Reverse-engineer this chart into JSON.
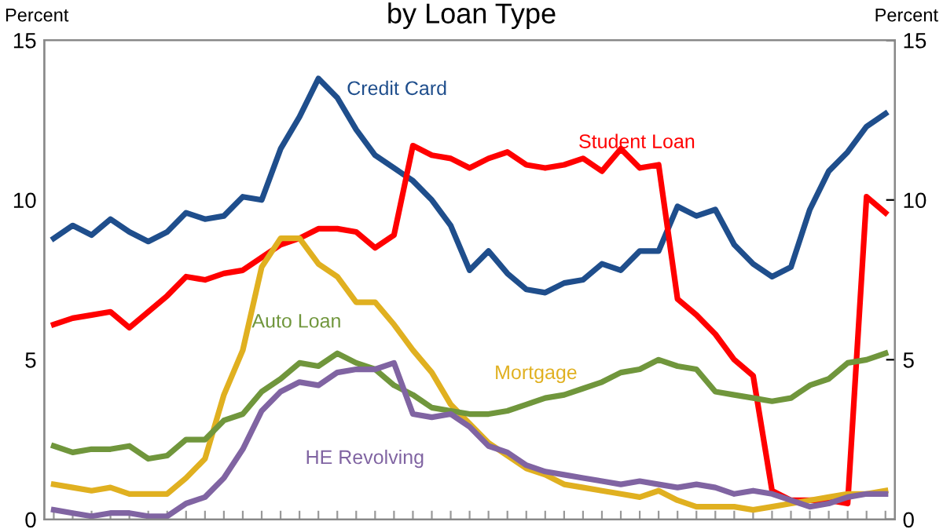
{
  "chart_data": {
    "type": "line",
    "title": "by Loan Type",
    "ylabel": "Percent",
    "y2label": "Percent",
    "categories": [
      null,
      null,
      null,
      null,
      null,
      null,
      null,
      null,
      null,
      null,
      null,
      null,
      null,
      null,
      null,
      null,
      null,
      null,
      null,
      null,
      null,
      null,
      null,
      null,
      null,
      null,
      null,
      null,
      null,
      null,
      null,
      null,
      null,
      null,
      null,
      null,
      null,
      null,
      null,
      null,
      null,
      null,
      null,
      null,
      null
    ],
    "ylim": [
      0,
      15
    ],
    "yticks": [
      0,
      5,
      10,
      15
    ],
    "y2lim": [
      0,
      15
    ],
    "y2ticks": [
      0,
      5,
      10,
      15
    ],
    "grid": false,
    "legend": false,
    "marker": "none",
    "line_style": "solid",
    "series": [
      {
        "name": "Credit Card",
        "color": "#1f4e8c",
        "values": [
          8.8,
          9.2,
          8.9,
          9.4,
          9.0,
          8.7,
          9.0,
          9.6,
          9.4,
          9.5,
          10.1,
          10.0,
          11.6,
          12.6,
          13.8,
          13.2,
          12.2,
          11.4,
          11.0,
          10.6,
          10.0,
          9.2,
          7.8,
          8.4,
          7.7,
          7.2,
          7.1,
          7.4,
          7.5,
          8.0,
          7.8,
          8.4,
          8.4,
          9.8,
          9.5,
          9.7,
          8.6,
          8.0,
          7.6,
          7.9,
          9.7,
          10.9,
          11.5,
          12.3,
          12.7
        ]
      },
      {
        "name": "Student Loan",
        "color": "#ff0000",
        "values": [
          6.1,
          6.3,
          6.4,
          6.5,
          6.0,
          6.5,
          7.0,
          7.6,
          7.5,
          7.7,
          7.8,
          8.2,
          8.6,
          8.8,
          9.1,
          9.1,
          9.0,
          8.5,
          8.9,
          11.7,
          11.4,
          11.3,
          11.0,
          11.3,
          11.5,
          11.1,
          11.0,
          11.1,
          11.3,
          10.9,
          11.6,
          11.0,
          11.1,
          6.9,
          6.4,
          5.8,
          5.0,
          4.5,
          0.9,
          0.6,
          0.6,
          0.6,
          0.5,
          10.1,
          9.6
        ]
      },
      {
        "name": "Mortgage",
        "color": "#e0b020",
        "values": [
          1.1,
          1.0,
          0.9,
          1.0,
          0.8,
          0.8,
          0.8,
          1.3,
          1.9,
          3.9,
          5.3,
          7.9,
          8.8,
          8.8,
          8.0,
          7.6,
          6.8,
          6.8,
          6.1,
          5.3,
          4.6,
          3.6,
          3.0,
          2.4,
          2.0,
          1.6,
          1.4,
          1.1,
          1.0,
          0.9,
          0.8,
          0.7,
          0.9,
          0.6,
          0.4,
          0.4,
          0.4,
          0.3,
          0.4,
          0.5,
          0.6,
          0.7,
          0.8,
          0.8,
          0.9
        ]
      },
      {
        "name": "Auto Loan",
        "color": "#70963c",
        "values": [
          2.3,
          2.1,
          2.2,
          2.2,
          2.3,
          1.9,
          2.0,
          2.5,
          2.5,
          3.1,
          3.3,
          4.0,
          4.4,
          4.9,
          4.8,
          5.2,
          4.9,
          4.7,
          4.2,
          3.9,
          3.5,
          3.4,
          3.3,
          3.3,
          3.4,
          3.6,
          3.8,
          3.9,
          4.1,
          4.3,
          4.6,
          4.7,
          5.0,
          4.8,
          4.7,
          4.0,
          3.9,
          3.8,
          3.7,
          3.8,
          4.2,
          4.4,
          4.9,
          5.0,
          5.2
        ]
      },
      {
        "name": "HE Revolving",
        "color": "#8064a2",
        "values": [
          0.3,
          0.2,
          0.1,
          0.2,
          0.2,
          0.1,
          0.1,
          0.5,
          0.7,
          1.3,
          2.2,
          3.4,
          4.0,
          4.3,
          4.2,
          4.6,
          4.7,
          4.7,
          4.9,
          3.3,
          3.2,
          3.3,
          2.9,
          2.3,
          2.1,
          1.7,
          1.5,
          1.4,
          1.3,
          1.2,
          1.1,
          1.2,
          1.1,
          1.0,
          1.1,
          1.0,
          0.8,
          0.9,
          0.8,
          0.6,
          0.4,
          0.5,
          0.7,
          0.8,
          0.8
        ]
      }
    ]
  }
}
